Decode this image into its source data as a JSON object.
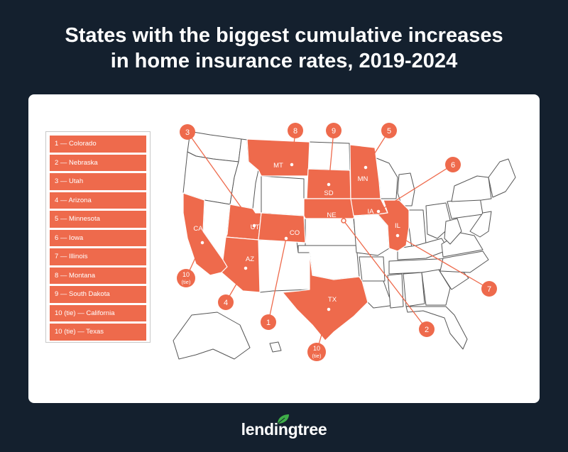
{
  "title": {
    "line1": "States with the biggest cumulative increases",
    "line2": "in home insurance rates, 2019-2024"
  },
  "legend": [
    "1 — Colorado",
    "2 — Nebraska",
    "3 — Utah",
    "4 — Arizona",
    "5 — Minnesota",
    "6 — Iowa",
    "7 — Illinois",
    "8 — Montana",
    "9 — South Dakota",
    "10 (tie) — California",
    "10 (tie) — Texas"
  ],
  "highlighted_states": [
    {
      "abbr": "CO",
      "rank": "1"
    },
    {
      "abbr": "NE",
      "rank": "2"
    },
    {
      "abbr": "UT",
      "rank": "3"
    },
    {
      "abbr": "AZ",
      "rank": "4"
    },
    {
      "abbr": "MN",
      "rank": "5"
    },
    {
      "abbr": "IA",
      "rank": "6"
    },
    {
      "abbr": "IL",
      "rank": "7"
    },
    {
      "abbr": "MT",
      "rank": "8"
    },
    {
      "abbr": "SD",
      "rank": "9"
    },
    {
      "abbr": "CA",
      "rank": "10"
    },
    {
      "abbr": "TX",
      "rank": "10"
    }
  ],
  "tie_label": "(tie)",
  "colors": {
    "background": "#14202e",
    "highlight": "#ee6a4c",
    "state_outline": "#555555",
    "panel": "#ffffff",
    "logo_leaf": "#3fae49"
  },
  "logo": "lendingtree"
}
